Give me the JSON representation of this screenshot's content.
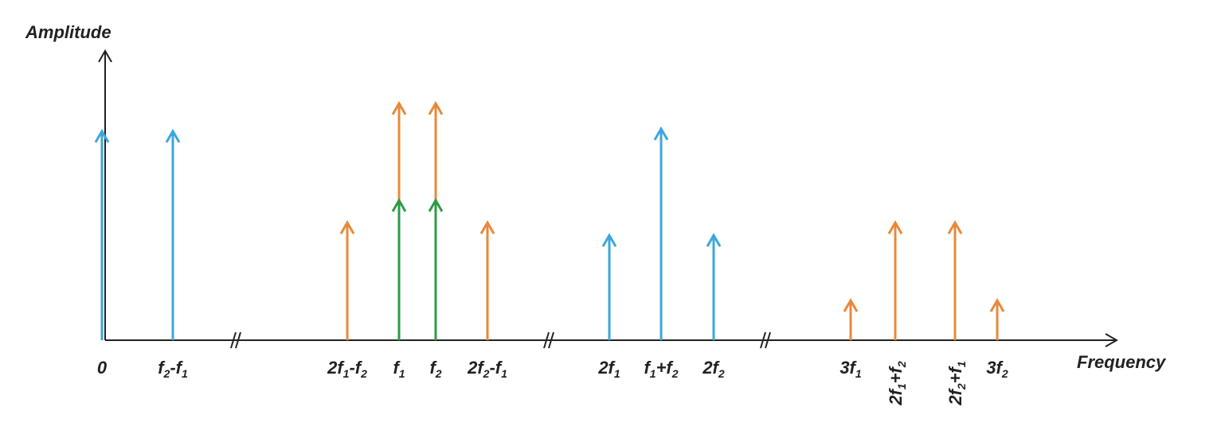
{
  "axis": {
    "y_label": "Amplitude",
    "x_label": "Frequency"
  },
  "labels": [
    [
      "0"
    ],
    [
      "f",
      "2",
      "-f",
      "1"
    ],
    [
      "2f",
      "1",
      "-f",
      "2"
    ],
    [
      "f",
      "1"
    ],
    [
      "f",
      "2"
    ],
    [
      "2f",
      "2",
      "-f",
      "1"
    ],
    [
      "2f",
      "1"
    ],
    [
      "f",
      "1",
      "+f",
      "2"
    ],
    [
      "2f",
      "2"
    ],
    [
      "3f",
      "1"
    ],
    [
      "2f",
      "1",
      "+f",
      "2"
    ],
    [
      "2f",
      "2",
      "+f",
      "1"
    ],
    [
      "3f",
      "2"
    ]
  ]
}
